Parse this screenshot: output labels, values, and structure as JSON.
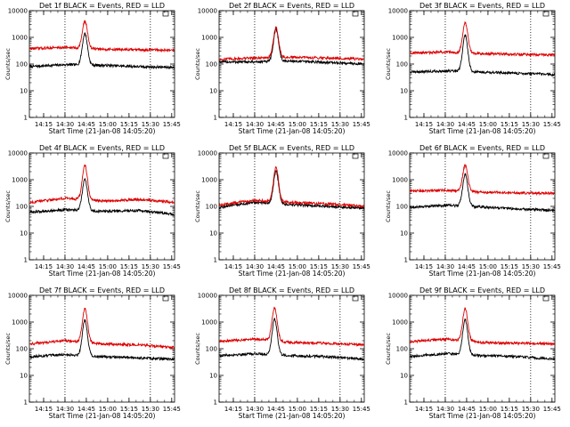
{
  "chart_data": [
    {
      "type": "line",
      "title": "Det 1f BLACK = Events, RED = LLD",
      "xlabel": "Start Time (21-Jan-08 14:05:20)",
      "ylabel": "Counts/sec",
      "yscale": "log",
      "ylim": [
        1,
        10000
      ],
      "xlim": [
        "14:05",
        "15:47"
      ],
      "y_tick_labels": [
        "1",
        "10",
        "100",
        "1000",
        "10000"
      ],
      "x_tick_labels": [
        "14:15",
        "14:30",
        "14:45",
        "15:00",
        "15:15",
        "15:30",
        "15:45"
      ],
      "dotted_vlines": [
        "14:30",
        "15:30"
      ],
      "series": [
        {
          "color": "#000000",
          "baseline": [
            80,
            95,
            90,
            80,
            75
          ],
          "peak": 1400,
          "peak_time": "14:44"
        },
        {
          "color": "#dd0000",
          "baseline": [
            380,
            420,
            360,
            340,
            330
          ],
          "peak": 4000,
          "peak_time": "14:44"
        }
      ]
    },
    {
      "type": "line",
      "title": "Det 2f BLACK = Events, RED = LLD",
      "xlabel": "Start Time (21-Jan-08 14:05:20)",
      "ylabel": "Counts/sec",
      "yscale": "log",
      "ylim": [
        1,
        10000
      ],
      "xlim": [
        "14:05",
        "15:47"
      ],
      "y_tick_labels": [
        "1",
        "10",
        "100",
        "1000",
        "10000"
      ],
      "x_tick_labels": [
        "14:15",
        "14:30",
        "14:45",
        "15:00",
        "15:15",
        "15:30",
        "15:45"
      ],
      "dotted_vlines": [
        "14:30",
        "15:30"
      ],
      "series": [
        {
          "color": "#000000",
          "baseline": [
            120,
            120,
            130,
            115,
            100
          ],
          "peak": 2000,
          "peak_time": "14:45"
        },
        {
          "color": "#dd0000",
          "baseline": [
            150,
            170,
            180,
            170,
            150
          ],
          "peak": 2300,
          "peak_time": "14:45"
        }
      ]
    },
    {
      "type": "line",
      "title": "Det 3f BLACK = Events, RED = LLD",
      "xlabel": "Start Time (21-Jan-08 14:05:20)",
      "ylabel": "Counts/sec",
      "yscale": "log",
      "ylim": [
        1,
        10000
      ],
      "xlim": [
        "14:05",
        "15:47"
      ],
      "y_tick_labels": [
        "1",
        "10",
        "100",
        "1000",
        "10000"
      ],
      "x_tick_labels": [
        "14:15",
        "14:30",
        "14:45",
        "15:00",
        "15:15",
        "15:30",
        "15:45"
      ],
      "dotted_vlines": [
        "14:30",
        "15:30"
      ],
      "series": [
        {
          "color": "#000000",
          "baseline": [
            50,
            55,
            50,
            45,
            40
          ],
          "peak": 1200,
          "peak_time": "14:44"
        },
        {
          "color": "#dd0000",
          "baseline": [
            260,
            280,
            250,
            230,
            220
          ],
          "peak": 3500,
          "peak_time": "14:44"
        }
      ]
    },
    {
      "type": "line",
      "title": "Det 4f BLACK = Events, RED = LLD",
      "xlabel": "Start Time (21-Jan-08 14:05:20)",
      "ylabel": "Counts/sec",
      "yscale": "log",
      "ylim": [
        1,
        10000
      ],
      "xlim": [
        "14:05",
        "15:47"
      ],
      "y_tick_labels": [
        "1",
        "10",
        "100",
        "1000",
        "10000"
      ],
      "x_tick_labels": [
        "14:15",
        "14:30",
        "14:45",
        "15:00",
        "15:15",
        "15:30",
        "15:45"
      ],
      "dotted_vlines": [
        "14:30",
        "15:30"
      ],
      "series": [
        {
          "color": "#000000",
          "baseline": [
            60,
            75,
            65,
            70,
            50
          ],
          "peak": 1000,
          "peak_time": "14:44"
        },
        {
          "color": "#dd0000",
          "baseline": [
            140,
            200,
            160,
            180,
            140
          ],
          "peak": 3500,
          "peak_time": "14:44"
        }
      ]
    },
    {
      "type": "line",
      "title": "Det 5f BLACK = Events, RED = LLD",
      "xlabel": "Start Time (21-Jan-08 14:05:20)",
      "ylabel": "Counts/sec",
      "yscale": "log",
      "ylim": [
        1,
        10000
      ],
      "xlim": [
        "14:05",
        "15:47"
      ],
      "y_tick_labels": [
        "1",
        "10",
        "100",
        "1000",
        "10000"
      ],
      "x_tick_labels": [
        "14:15",
        "14:30",
        "14:45",
        "15:00",
        "15:15",
        "15:30",
        "15:45"
      ],
      "dotted_vlines": [
        "14:30",
        "15:30"
      ],
      "series": [
        {
          "color": "#000000",
          "baseline": [
            90,
            140,
            115,
            100,
            85
          ],
          "peak": 2000,
          "peak_time": "14:45"
        },
        {
          "color": "#dd0000",
          "baseline": [
            110,
            170,
            140,
            125,
            100
          ],
          "peak": 2800,
          "peak_time": "14:45"
        }
      ]
    },
    {
      "type": "line",
      "title": "Det 6f BLACK = Events, RED = LLD",
      "xlabel": "Start Time (21-Jan-08 14:05:20)",
      "ylabel": "Counts/sec",
      "yscale": "log",
      "ylim": [
        1,
        10000
      ],
      "xlim": [
        "14:05",
        "15:47"
      ],
      "y_tick_labels": [
        "1",
        "10",
        "100",
        "1000",
        "10000"
      ],
      "x_tick_labels": [
        "14:15",
        "14:30",
        "14:45",
        "15:00",
        "15:15",
        "15:30",
        "15:45"
      ],
      "dotted_vlines": [
        "14:30",
        "15:30"
      ],
      "series": [
        {
          "color": "#000000",
          "baseline": [
            90,
            110,
            95,
            80,
            70
          ],
          "peak": 1600,
          "peak_time": "14:44"
        },
        {
          "color": "#dd0000",
          "baseline": [
            370,
            400,
            340,
            320,
            310
          ],
          "peak": 3500,
          "peak_time": "14:44"
        }
      ]
    },
    {
      "type": "line",
      "title": "Det 7f BLACK = Events, RED = LLD",
      "xlabel": "Start Time (21-Jan-08 14:05:20)",
      "ylabel": "Counts/sec",
      "yscale": "log",
      "ylim": [
        1,
        10000
      ],
      "xlim": [
        "14:05",
        "15:47"
      ],
      "y_tick_labels": [
        "1",
        "10",
        "100",
        "1000",
        "10000"
      ],
      "x_tick_labels": [
        "14:15",
        "14:30",
        "14:45",
        "15:00",
        "15:15",
        "15:30",
        "15:45"
      ],
      "dotted_vlines": [
        "14:30",
        "15:30"
      ],
      "series": [
        {
          "color": "#000000",
          "baseline": [
            50,
            60,
            50,
            45,
            40
          ],
          "peak": 1200,
          "peak_time": "14:44"
        },
        {
          "color": "#dd0000",
          "baseline": [
            150,
            200,
            150,
            140,
            110
          ],
          "peak": 3200,
          "peak_time": "14:44"
        }
      ]
    },
    {
      "type": "line",
      "title": "Det 8f BLACK = Events, RED = LLD",
      "xlabel": "Start Time (21-Jan-08 14:05:20)",
      "ylabel": "Counts/sec",
      "yscale": "log",
      "ylim": [
        1,
        10000
      ],
      "xlim": [
        "14:05",
        "15:47"
      ],
      "y_tick_labels": [
        "1",
        "10",
        "100",
        "1000",
        "10000"
      ],
      "x_tick_labels": [
        "14:15",
        "14:30",
        "14:45",
        "15:00",
        "15:15",
        "15:30",
        "15:45"
      ],
      "dotted_vlines": [
        "14:30",
        "15:30"
      ],
      "series": [
        {
          "color": "#000000",
          "baseline": [
            55,
            65,
            55,
            50,
            40
          ],
          "peak": 1300,
          "peak_time": "14:44"
        },
        {
          "color": "#dd0000",
          "baseline": [
            190,
            230,
            170,
            160,
            140
          ],
          "peak": 3500,
          "peak_time": "14:44"
        }
      ]
    },
    {
      "type": "line",
      "title": "Det 9f BLACK = Events, RED = LLD",
      "xlabel": "Start Time (21-Jan-08 14:05:20)",
      "ylabel": "Counts/sec",
      "yscale": "log",
      "ylim": [
        1,
        10000
      ],
      "xlim": [
        "14:05",
        "15:47"
      ],
      "y_tick_labels": [
        "1",
        "10",
        "100",
        "1000",
        "10000"
      ],
      "x_tick_labels": [
        "14:15",
        "14:30",
        "14:45",
        "15:00",
        "15:15",
        "15:30",
        "15:45"
      ],
      "dotted_vlines": [
        "14:30",
        "15:30"
      ],
      "series": [
        {
          "color": "#000000",
          "baseline": [
            50,
            65,
            55,
            50,
            40
          ],
          "peak": 1200,
          "peak_time": "14:44"
        },
        {
          "color": "#dd0000",
          "baseline": [
            180,
            230,
            170,
            160,
            150
          ],
          "peak": 3200,
          "peak_time": "14:44"
        }
      ]
    }
  ]
}
